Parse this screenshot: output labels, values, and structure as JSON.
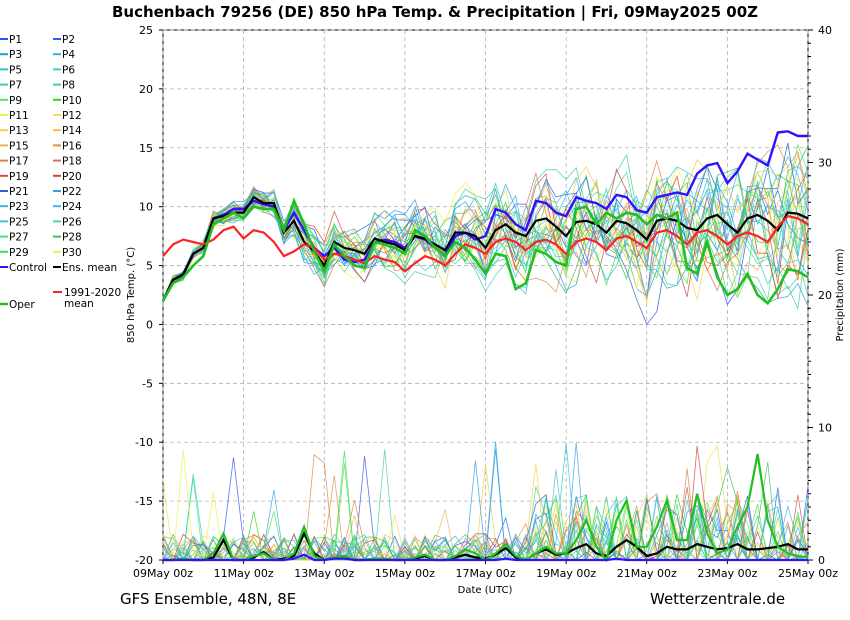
{
  "chart_data": {
    "type": "line",
    "title": "Buchenbach 79256 (DE)  850 hPa Temp. & Precipitation | Fri, 09May2025 00Z",
    "ylabel": "850 hPa Temp. (°C)",
    "y2label": "Precipitation (mm)",
    "xlabel": "Date (UTC)",
    "x_ticks": [
      "09May 00z",
      "11May 00z",
      "13May 00z",
      "15May 00z",
      "17May 00z",
      "19May 00z",
      "21May 00z",
      "23May 00z",
      "25May 00z"
    ],
    "y_ticks": [
      "25",
      "20",
      "15",
      "10",
      "5",
      "0",
      "-5",
      "-10",
      "-15",
      "-20"
    ],
    "y2_ticks": [
      "40",
      "30",
      "20",
      "10",
      "0"
    ],
    "ylim": [
      -20,
      25
    ],
    "y2lim": [
      0,
      40
    ],
    "xlim_days": [
      0,
      16
    ],
    "grid": true,
    "legend_position": "left",
    "legend": [
      {
        "label": "P1",
        "color": "#3050ff"
      },
      {
        "label": "P2",
        "color": "#2060ff"
      },
      {
        "label": "P3",
        "color": "#20a0d0"
      },
      {
        "label": "P4",
        "color": "#30b0e0"
      },
      {
        "label": "P5",
        "color": "#30c0d0"
      },
      {
        "label": "P6",
        "color": "#30d0c0"
      },
      {
        "label": "P7",
        "color": "#40d0a0"
      },
      {
        "label": "P8",
        "color": "#40d090"
      },
      {
        "label": "P9",
        "color": "#50e070"
      },
      {
        "label": "P10",
        "color": "#30d020"
      },
      {
        "label": "P11",
        "color": "#f0f040"
      },
      {
        "label": "P12",
        "color": "#f0e040"
      },
      {
        "label": "P13",
        "color": "#f0d040"
      },
      {
        "label": "P14",
        "color": "#f0c040"
      },
      {
        "label": "P15",
        "color": "#f0b050"
      },
      {
        "label": "P16",
        "color": "#e09040"
      },
      {
        "label": "P17",
        "color": "#e08040"
      },
      {
        "label": "P18",
        "color": "#e07050"
      },
      {
        "label": "P19",
        "color": "#d05040"
      },
      {
        "label": "P20",
        "color": "#d04040"
      },
      {
        "label": "P21",
        "color": "#3060d0"
      },
      {
        "label": "P22",
        "color": "#30a0f0"
      },
      {
        "label": "P23",
        "color": "#40b0e0"
      },
      {
        "label": "P24",
        "color": "#30c0f0"
      },
      {
        "label": "P25",
        "color": "#40c0d0"
      },
      {
        "label": "P26",
        "color": "#40e0a0"
      },
      {
        "label": "P27",
        "color": "#40e080"
      },
      {
        "label": "P28",
        "color": "#40c060"
      },
      {
        "label": "P29",
        "color": "#40e040"
      },
      {
        "label": "P30",
        "color": "#f0f040"
      },
      {
        "label": "Control",
        "color": "#3010ff"
      },
      {
        "label": "Ens. mean",
        "color": "#000000"
      },
      {
        "label": "1991-2020 mean",
        "color": "#ff2020"
      },
      {
        "label": "Oper",
        "color": "#20c020"
      }
    ],
    "series": [
      {
        "name": "Control",
        "color": "#3010ff",
        "x": [
          0,
          0.25,
          0.5,
          0.75,
          1,
          1.25,
          1.5,
          1.75,
          2,
          2.25,
          2.5,
          2.75,
          3,
          3.25,
          3.5,
          3.75,
          4,
          4.25,
          4.5,
          4.75,
          5,
          5.25,
          5.5,
          5.75,
          6,
          6.25,
          6.5,
          6.75,
          7,
          7.25,
          7.5,
          7.75,
          8,
          8.25,
          8.5,
          8.75,
          9,
          9.25,
          9.5,
          9.75,
          10,
          10.25,
          10.5,
          10.75,
          11,
          11.25,
          11.5,
          11.75,
          12,
          12.25,
          12.5,
          12.75,
          13,
          13.25,
          13.5,
          13.75,
          14,
          14.25,
          14.5,
          14.75,
          15,
          15.25,
          15.5,
          15.75,
          16
        ],
        "values": [
          2.0,
          3.8,
          4.3,
          6.0,
          6.5,
          9.0,
          9.3,
          9.8,
          9.8,
          10.5,
          10.2,
          10.0,
          8.0,
          9.5,
          8.0,
          6.5,
          5.8,
          6.5,
          5.5,
          5.3,
          5.5,
          7.0,
          7.2,
          7.0,
          6.5,
          7.5,
          7.2,
          6.5,
          5.8,
          7.5,
          7.8,
          7.2,
          7.5,
          9.8,
          9.5,
          8.5,
          8.0,
          10.5,
          10.3,
          9.5,
          9.2,
          10.8,
          10.5,
          10.3,
          9.8,
          11.0,
          10.8,
          9.7,
          9.5,
          10.8,
          11.0,
          11.2,
          11.0,
          12.8,
          13.5,
          13.7,
          12.0,
          13.0,
          14.5,
          14.0,
          13.5,
          16.3,
          16.4,
          16.0,
          16.0
        ]
      },
      {
        "name": "Ens. mean",
        "color": "#000000",
        "x": [
          0,
          0.25,
          0.5,
          0.75,
          1,
          1.25,
          1.5,
          1.75,
          2,
          2.25,
          2.5,
          2.75,
          3,
          3.25,
          3.5,
          3.75,
          4,
          4.25,
          4.5,
          4.75,
          5,
          5.25,
          5.5,
          5.75,
          6,
          6.25,
          6.5,
          6.75,
          7,
          7.25,
          7.5,
          7.75,
          8,
          8.25,
          8.5,
          8.75,
          9,
          9.25,
          9.5,
          9.75,
          10,
          10.25,
          10.5,
          10.75,
          11,
          11.25,
          11.5,
          11.75,
          12,
          12.25,
          12.5,
          12.75,
          13,
          13.25,
          13.5,
          13.75,
          14,
          14.25,
          14.5,
          14.75,
          15,
          15.25,
          15.5,
          15.75,
          16
        ],
        "values": [
          2.0,
          3.8,
          4.2,
          6.0,
          6.5,
          9.0,
          9.2,
          9.5,
          9.5,
          10.8,
          10.3,
          10.3,
          7.8,
          8.8,
          7.0,
          6.2,
          5.0,
          7.0,
          6.5,
          6.3,
          6.0,
          7.3,
          7.0,
          6.8,
          6.3,
          7.5,
          7.3,
          6.8,
          6.3,
          7.8,
          7.8,
          7.5,
          6.5,
          8.0,
          8.5,
          7.8,
          7.5,
          8.8,
          9.0,
          8.3,
          7.5,
          8.7,
          8.8,
          8.5,
          7.8,
          8.8,
          8.6,
          8.0,
          7.2,
          8.8,
          9.0,
          8.8,
          8.2,
          8.0,
          9.0,
          9.3,
          8.5,
          7.8,
          9.0,
          9.3,
          8.8,
          8.0,
          9.5,
          9.4,
          9.0
        ]
      },
      {
        "name": "1991-2020 mean",
        "color": "#ff2020",
        "x": [
          0,
          0.25,
          0.5,
          0.75,
          1,
          1.25,
          1.5,
          1.75,
          2,
          2.25,
          2.5,
          2.75,
          3,
          3.25,
          3.5,
          3.75,
          4,
          4.25,
          4.5,
          4.75,
          5,
          5.25,
          5.5,
          5.75,
          6,
          6.25,
          6.5,
          6.75,
          7,
          7.25,
          7.5,
          7.75,
          8,
          8.25,
          8.5,
          8.75,
          9,
          9.25,
          9.5,
          9.75,
          10,
          10.25,
          10.5,
          10.75,
          11,
          11.25,
          11.5,
          11.75,
          12,
          12.25,
          12.5,
          12.75,
          13,
          13.25,
          13.5,
          13.75,
          14,
          14.25,
          14.5,
          14.75,
          15,
          15.25,
          15.5,
          15.75,
          16
        ],
        "values": [
          5.8,
          6.8,
          7.2,
          7.0,
          6.8,
          7.2,
          8.0,
          8.3,
          7.3,
          8.0,
          7.8,
          7.0,
          5.8,
          6.2,
          6.8,
          6.5,
          5.5,
          6.0,
          5.8,
          5.5,
          5.2,
          5.8,
          5.5,
          5.3,
          4.5,
          5.2,
          5.8,
          5.5,
          5.0,
          6.0,
          6.8,
          6.5,
          6.0,
          7.0,
          7.3,
          7.0,
          6.3,
          7.0,
          7.2,
          6.8,
          6.0,
          7.0,
          7.3,
          7.0,
          6.3,
          7.3,
          7.5,
          7.0,
          6.5,
          7.8,
          8.0,
          7.5,
          6.8,
          7.8,
          8.0,
          7.5,
          6.8,
          7.5,
          7.8,
          7.5,
          7.0,
          8.3,
          9.2,
          9.0,
          8.5
        ]
      },
      {
        "name": "Oper",
        "color": "#20c020",
        "x": [
          0,
          0.25,
          0.5,
          0.75,
          1,
          1.25,
          1.5,
          1.75,
          2,
          2.25,
          2.5,
          2.75,
          3,
          3.25,
          3.5,
          3.75,
          4,
          4.25,
          4.5,
          4.75,
          5,
          5.25,
          5.5,
          5.75,
          6,
          6.25,
          6.5,
          6.75,
          7,
          7.25,
          7.5,
          7.75,
          8,
          8.25,
          8.5,
          8.75,
          9,
          9.25,
          9.5,
          9.75,
          10,
          10.25,
          10.5,
          10.75,
          11,
          11.25,
          11.5,
          11.75,
          12,
          12.25,
          12.5,
          12.75,
          13,
          13.25,
          13.5,
          13.75,
          14,
          14.25,
          14.5,
          14.75,
          15,
          15.25,
          15.5,
          15.75,
          16
        ],
        "values": [
          2.0,
          3.5,
          4.0,
          5.0,
          5.8,
          8.5,
          9.0,
          9.5,
          9.0,
          10.0,
          9.8,
          9.8,
          8.0,
          10.5,
          8.5,
          6.2,
          4.5,
          6.8,
          5.8,
          5.0,
          4.8,
          7.0,
          6.8,
          6.5,
          6.0,
          8.0,
          7.5,
          6.5,
          5.8,
          7.0,
          6.5,
          5.5,
          4.3,
          6.0,
          5.8,
          3.0,
          3.5,
          6.3,
          6.0,
          5.3,
          5.0,
          9.8,
          10.0,
          8.5,
          9.5,
          9.0,
          9.5,
          9.3,
          8.5,
          9.3,
          9.0,
          9.5,
          4.8,
          4.3,
          7.0,
          4.0,
          2.5,
          3.0,
          4.3,
          2.5,
          1.8,
          3.0,
          4.7,
          4.5,
          4.0
        ]
      }
    ],
    "precipitation_series": [
      {
        "name": "Ens. mean",
        "color": "#000000",
        "values_mm": [
          0,
          0,
          0.1,
          0,
          0,
          0.2,
          1.5,
          0,
          0,
          0.2,
          0.6,
          0,
          0.1,
          0.3,
          2.0,
          0.5,
          0,
          0.2,
          0.3,
          0,
          0,
          0.1,
          0.1,
          0,
          0,
          0.1,
          0.3,
          0,
          0,
          0.2,
          0.4,
          0.2,
          0.1,
          0.4,
          0.9,
          0.2,
          0,
          0.5,
          0.8,
          0.4,
          0.5,
          0.9,
          1.2,
          0.5,
          0.3,
          1.0,
          1.5,
          1.0,
          0.3,
          0.5,
          1.0,
          0.8,
          0.8,
          1.2,
          1.0,
          0.8,
          0.9,
          1.2,
          0.8,
          0.8,
          0.9,
          1.0,
          1.2,
          0.8,
          0.8
        ]
      },
      {
        "name": "Oper",
        "color": "#20c020",
        "values_mm": [
          0,
          0,
          0.1,
          0,
          0,
          0.5,
          2.0,
          0,
          0,
          0.3,
          0.5,
          0,
          0,
          0.5,
          2.5,
          0.3,
          0,
          0.2,
          0.3,
          0,
          0,
          0.1,
          0.1,
          0,
          0,
          0.2,
          0.4,
          0,
          0,
          0.3,
          0.8,
          0.5,
          0,
          0.5,
          1.2,
          0.3,
          0,
          0.5,
          1.0,
          0.5,
          0.5,
          1.5,
          3.0,
          1.0,
          0,
          3.0,
          4.5,
          1.0,
          1.0,
          2.5,
          4.5,
          1.5,
          1.5,
          5.0,
          2.0,
          0.5,
          0.8,
          2.5,
          4.0,
          8.0,
          3.0,
          1.0,
          0.5,
          0.3,
          0.2
        ]
      },
      {
        "name": "Control",
        "color": "#3010ff",
        "values_mm": [
          0,
          0,
          0,
          0,
          0,
          0,
          0,
          0,
          0,
          0,
          0,
          0,
          0,
          0.1,
          0.4,
          0,
          0,
          0.1,
          0.1,
          0,
          0,
          0,
          0,
          0,
          0,
          0,
          0,
          0,
          0,
          0,
          0,
          0,
          0,
          0,
          0.1,
          0,
          0,
          0,
          0,
          0,
          0,
          0,
          0,
          0,
          0,
          0.1,
          0,
          0,
          0,
          0,
          0,
          0,
          0,
          0,
          0,
          0,
          0,
          0,
          0,
          0,
          0,
          0,
          0,
          0,
          0
        ]
      }
    ]
  },
  "footer": {
    "left": "GFS Ensemble, 48N, 8E",
    "right": "Wetterzentrale.de"
  }
}
